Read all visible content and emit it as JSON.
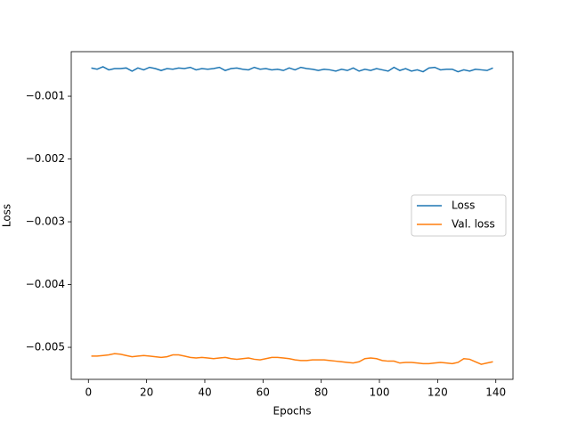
{
  "chart_data": {
    "type": "line",
    "x": [
      1,
      3,
      5,
      7,
      9,
      11,
      13,
      15,
      17,
      19,
      21,
      23,
      25,
      27,
      29,
      31,
      33,
      35,
      37,
      39,
      41,
      43,
      45,
      47,
      49,
      51,
      53,
      55,
      57,
      59,
      61,
      63,
      65,
      67,
      69,
      71,
      73,
      75,
      77,
      79,
      81,
      83,
      85,
      87,
      89,
      91,
      93,
      95,
      97,
      99,
      101,
      103,
      105,
      107,
      109,
      111,
      113,
      115,
      117,
      119,
      121,
      123,
      125,
      127,
      129,
      131,
      133,
      135,
      137,
      139
    ],
    "series": [
      {
        "name": "Loss",
        "color": "#1f77b4",
        "values": [
          -0.00055,
          -0.00057,
          -0.00053,
          -0.00058,
          -0.00056,
          -0.00056,
          -0.00055,
          -0.0006,
          -0.00055,
          -0.00058,
          -0.00054,
          -0.00056,
          -0.00059,
          -0.00056,
          -0.00057,
          -0.00055,
          -0.00056,
          -0.00054,
          -0.00058,
          -0.00056,
          -0.00057,
          -0.00056,
          -0.00054,
          -0.00059,
          -0.00056,
          -0.00055,
          -0.00057,
          -0.00058,
          -0.00054,
          -0.00057,
          -0.00056,
          -0.00058,
          -0.00057,
          -0.00059,
          -0.00055,
          -0.00058,
          -0.00054,
          -0.00056,
          -0.00057,
          -0.00059,
          -0.00057,
          -0.00058,
          -0.0006,
          -0.00057,
          -0.00059,
          -0.00055,
          -0.0006,
          -0.00057,
          -0.00059,
          -0.00056,
          -0.00058,
          -0.0006,
          -0.00054,
          -0.00059,
          -0.00056,
          -0.0006,
          -0.00058,
          -0.00061,
          -0.00055,
          -0.00054,
          -0.00058,
          -0.00057,
          -0.00057,
          -0.00061,
          -0.00058,
          -0.0006,
          -0.00057,
          -0.00058,
          -0.00059,
          -0.00055
        ]
      },
      {
        "name": "Val. loss",
        "color": "#ff7f0e",
        "values": [
          -0.00514,
          -0.00514,
          -0.00513,
          -0.00512,
          -0.0051,
          -0.00511,
          -0.00513,
          -0.00515,
          -0.00514,
          -0.00513,
          -0.00514,
          -0.00515,
          -0.00516,
          -0.00515,
          -0.00512,
          -0.00512,
          -0.00514,
          -0.00516,
          -0.00517,
          -0.00516,
          -0.00517,
          -0.00518,
          -0.00517,
          -0.00516,
          -0.00518,
          -0.00519,
          -0.00518,
          -0.00517,
          -0.00519,
          -0.0052,
          -0.00518,
          -0.00516,
          -0.00516,
          -0.00517,
          -0.00518,
          -0.0052,
          -0.00521,
          -0.00521,
          -0.0052,
          -0.0052,
          -0.0052,
          -0.00521,
          -0.00522,
          -0.00523,
          -0.00524,
          -0.00525,
          -0.00523,
          -0.00518,
          -0.00517,
          -0.00518,
          -0.00521,
          -0.00522,
          -0.00522,
          -0.00525,
          -0.00524,
          -0.00524,
          -0.00525,
          -0.00526,
          -0.00526,
          -0.00525,
          -0.00524,
          -0.00525,
          -0.00526,
          -0.00524,
          -0.00518,
          -0.00519,
          -0.00523,
          -0.00527,
          -0.00525,
          -0.00523
        ]
      }
    ],
    "xlabel": "Epochs",
    "ylabel": "Loss",
    "xlim": [
      -5.9,
      145.9
    ],
    "xticks": [
      0,
      20,
      40,
      60,
      80,
      100,
      120,
      140
    ],
    "ylim": [
      -0.00551,
      -0.00029
    ],
    "yticks": [
      {
        "value": -0.005,
        "label": "−0.005"
      },
      {
        "value": -0.004,
        "label": "−0.004"
      },
      {
        "value": -0.003,
        "label": "−0.003"
      },
      {
        "value": -0.002,
        "label": "−0.002"
      },
      {
        "value": -0.001,
        "label": "−0.001"
      }
    ],
    "legend": "center right"
  }
}
